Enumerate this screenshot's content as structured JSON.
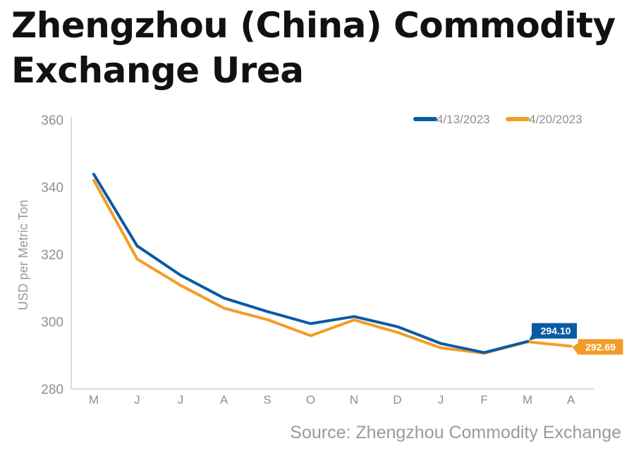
{
  "title": "Zhengzhou (China) Commodity Exchange Urea",
  "source": "Source: Zhengzhou Commodity Exchange",
  "chart_data": {
    "type": "line",
    "title": "Zhengzhou (China) Commodity Exchange Urea",
    "ylabel": "USD per Metric Ton",
    "xlabel": "",
    "ylim": [
      280,
      360
    ],
    "yticks": [
      280,
      300,
      320,
      340,
      360
    ],
    "categories": [
      "M",
      "J",
      "J",
      "A",
      "S",
      "O",
      "N",
      "D",
      "J",
      "F",
      "M",
      "A"
    ],
    "grid": false,
    "legend_position": "top-right",
    "series": [
      {
        "name": "4/13/2023",
        "color": "#0a5aa6",
        "values": [
          343.8,
          322.5,
          313.8,
          307.0,
          303.0,
          299.4,
          301.5,
          298.5,
          293.5,
          290.8,
          294.1,
          null
        ],
        "end_label": "294.10"
      },
      {
        "name": "4/20/2023",
        "color": "#f39c25",
        "values": [
          342.0,
          318.6,
          310.8,
          304.0,
          300.6,
          295.8,
          300.5,
          296.8,
          292.2,
          290.6,
          294.0,
          292.69
        ],
        "end_label": "292.69"
      }
    ]
  }
}
